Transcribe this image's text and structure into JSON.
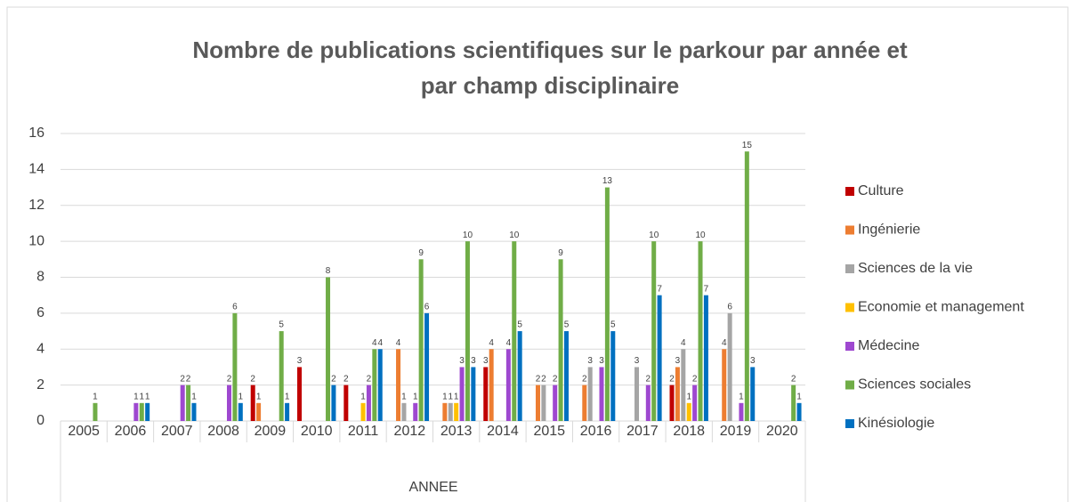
{
  "chart_data": {
    "type": "bar",
    "title": [
      "Nombre de publications scientifiques sur le parkour par année et",
      "par champ disciplinaire"
    ],
    "xlabel": "ANNEE",
    "categories": [
      "2005",
      "2006",
      "2007",
      "2008",
      "2009",
      "2010",
      "2011",
      "2012",
      "2013",
      "2014",
      "2015",
      "2016",
      "2017",
      "2018",
      "2019",
      "2020"
    ],
    "series": [
      {
        "name": "Culture",
        "color": "#c00000",
        "values": [
          0,
          0,
          0,
          0,
          2,
          3,
          2,
          0,
          0,
          3,
          0,
          0,
          0,
          2,
          0,
          0
        ]
      },
      {
        "name": "Ingénierie",
        "color": "#ed7d31",
        "values": [
          0,
          0,
          0,
          0,
          1,
          0,
          0,
          4,
          1,
          4,
          2,
          2,
          0,
          3,
          4,
          0
        ]
      },
      {
        "name": "Sciences de la vie",
        "color": "#a5a5a5",
        "values": [
          0,
          0,
          0,
          0,
          0,
          0,
          0,
          1,
          1,
          0,
          2,
          3,
          3,
          4,
          6,
          0
        ]
      },
      {
        "name": "Economie et management",
        "color": "#ffc000",
        "values": [
          0,
          0,
          0,
          0,
          0,
          0,
          1,
          0,
          1,
          0,
          0,
          0,
          0,
          1,
          0,
          0
        ]
      },
      {
        "name": "Médecine",
        "color": "#9e48d0",
        "values": [
          0,
          1,
          2,
          2,
          0,
          0,
          2,
          1,
          3,
          4,
          2,
          3,
          2,
          2,
          1,
          0
        ]
      },
      {
        "name": "Sciences sociales",
        "color": "#70ad47",
        "values": [
          1,
          1,
          2,
          6,
          5,
          8,
          4,
          9,
          10,
          10,
          9,
          13,
          10,
          10,
          15,
          2
        ]
      },
      {
        "name": "Kinésiologie",
        "color": "#0070c0",
        "values": [
          0,
          1,
          1,
          1,
          1,
          2,
          4,
          6,
          3,
          5,
          5,
          5,
          7,
          7,
          3,
          1
        ]
      }
    ],
    "ylim": [
      0,
      16
    ],
    "yticks": [
      0,
      2,
      4,
      6,
      8,
      10,
      12,
      14,
      16
    ],
    "grid": true,
    "legend": "right"
  }
}
